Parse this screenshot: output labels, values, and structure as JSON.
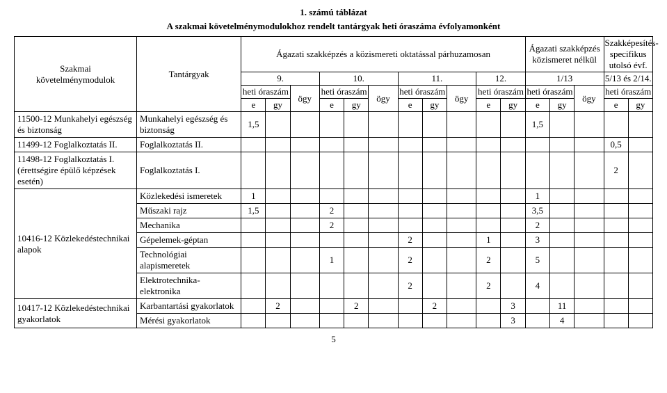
{
  "titles": {
    "number": "1. számú táblázat",
    "main": "A szakmai követelménymodulokhoz rendelt tantárgyak heti óraszáma évfolyamonként"
  },
  "headers": {
    "modules": "Szakmai\nkövetelménymodulok",
    "subjects": "Tantárgyak",
    "parallel": "Ágazati szakképzés a közismereti oktatással párhuzamosan",
    "without": "Ágazati szakképzés közismeret nélkül",
    "specific": "Szakképesítés-specifikus utolsó évf.",
    "grade9": "9.",
    "grade10": "10.",
    "grade11": "11.",
    "grade12": "12.",
    "grade113": "1/13",
    "grade513": "5/13 és 2/14.",
    "heti": "heti óraszám",
    "ogy": "ögy",
    "e": "e",
    "gy": "gy"
  },
  "modules": {
    "m1": "11500-12 Munkahelyi egészség és biztonság",
    "m2": "11499-12 Foglalkoztatás II.",
    "m3": "11498-12 Foglalkoztatás I. (érettségire épülő képzések esetén)",
    "m4": "10416-12 Közlekedéstechnikai alapok",
    "m5": "10417-12 Közlekedéstechnikai gyakorlatok"
  },
  "subjects": {
    "s1": "Munkahelyi egészség és biztonság",
    "s2": "Foglalkoztatás II.",
    "s3": "Foglalkoztatás I.",
    "s4": "Közlekedési ismeretek",
    "s5": "Műszaki rajz",
    "s6": "Mechanika",
    "s7": "Gépelemek-géptan",
    "s8": "Technológiai alapismeretek",
    "s9": "Elektrotechnika-elektronika",
    "s10": "Karbantartási gyakorlatok",
    "s11": "Mérési gyakorlatok"
  },
  "values": {
    "r1_c1": "1,5",
    "r1_c14": "1,5",
    "r2_c16": "0,5",
    "r3_c16": "2",
    "r4_c1": "1",
    "r4_c14": "1",
    "r5_c1": "1,5",
    "r5_c4": "2",
    "r5_c14": "3,5",
    "r6_c4": "2",
    "r6_c14": "2",
    "r7_c7": "2",
    "r7_c10": "1",
    "r7_c14": "3",
    "r8_c4": "1",
    "r8_c7": "2",
    "r8_c10": "2",
    "r8_c14": "5",
    "r9_c7": "2",
    "r9_c10": "2",
    "r9_c14": "4",
    "r10_c2": "2",
    "r10_c5": "2",
    "r10_c8": "2",
    "r10_c11": "3",
    "r10_c15": "11",
    "r11_c11": "3",
    "r11_c15": "4"
  },
  "page": "5"
}
